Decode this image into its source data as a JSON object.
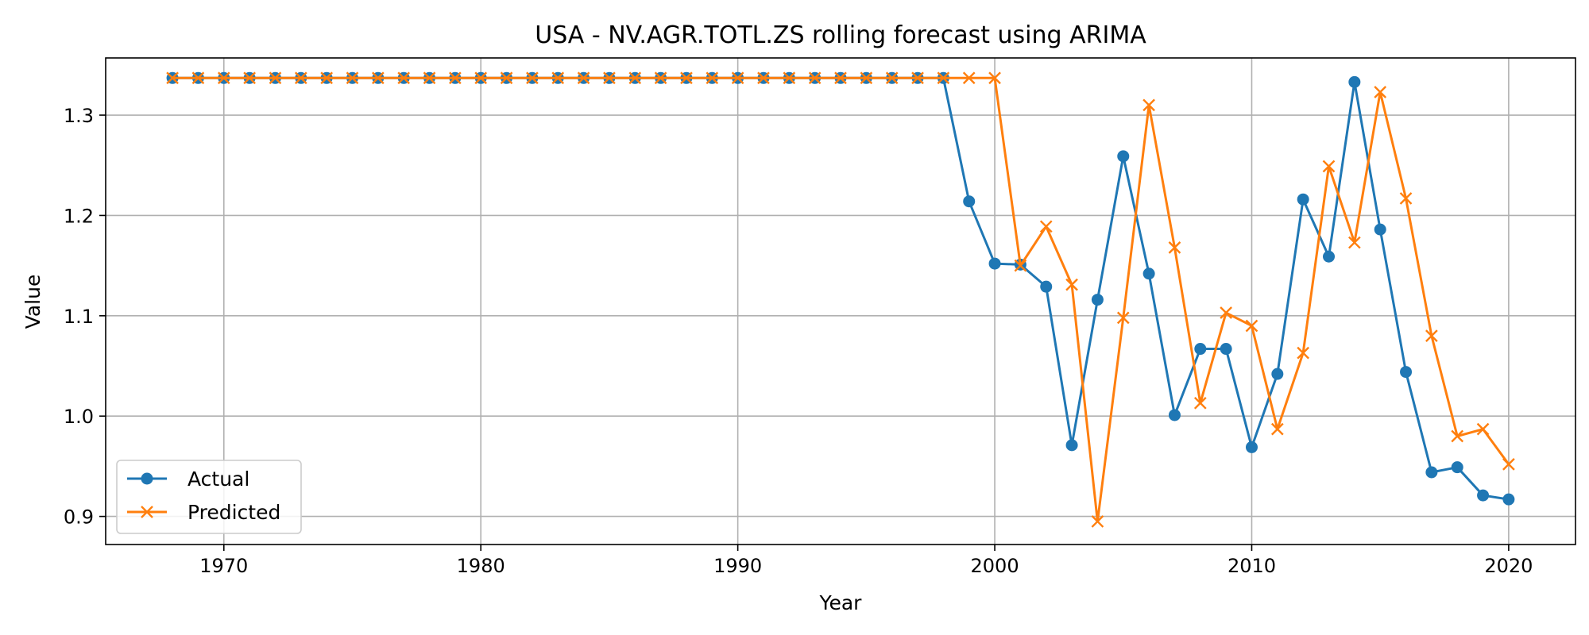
{
  "chart_data": {
    "type": "line",
    "title": "USA - NV.AGR.TOTL.ZS rolling forecast using ARIMA",
    "xlabel": "Year",
    "ylabel": "Value",
    "xlim": [
      1965.4,
      2022.6
    ],
    "ylim": [
      0.872,
      1.357
    ],
    "xticks": [
      1970,
      1980,
      1990,
      2000,
      2010,
      2020
    ],
    "yticks": [
      0.9,
      1.0,
      1.1,
      1.2,
      1.3
    ],
    "grid": true,
    "legend_position": "lower-left",
    "x": [
      1968,
      1969,
      1970,
      1971,
      1972,
      1973,
      1974,
      1975,
      1976,
      1977,
      1978,
      1979,
      1980,
      1981,
      1982,
      1983,
      1984,
      1985,
      1986,
      1987,
      1988,
      1989,
      1990,
      1991,
      1992,
      1993,
      1994,
      1995,
      1996,
      1997,
      1998,
      1999,
      2000,
      2001,
      2002,
      2003,
      2004,
      2005,
      2006,
      2007,
      2008,
      2009,
      2010,
      2011,
      2012,
      2013,
      2014,
      2015,
      2016,
      2017,
      2018,
      2019,
      2020
    ],
    "series": [
      {
        "name": "Actual",
        "color": "#1f77b4",
        "marker": "circle",
        "values": [
          1.337,
          1.337,
          1.337,
          1.337,
          1.337,
          1.337,
          1.337,
          1.337,
          1.337,
          1.337,
          1.337,
          1.337,
          1.337,
          1.337,
          1.337,
          1.337,
          1.337,
          1.337,
          1.337,
          1.337,
          1.337,
          1.337,
          1.337,
          1.337,
          1.337,
          1.337,
          1.337,
          1.337,
          1.337,
          1.337,
          1.337,
          1.214,
          1.152,
          1.151,
          1.129,
          0.971,
          1.116,
          1.259,
          1.142,
          1.001,
          1.067,
          1.067,
          0.969,
          1.042,
          1.216,
          1.159,
          1.333,
          1.186,
          1.044,
          0.944,
          0.949,
          0.921,
          0.917
        ]
      },
      {
        "name": "Predicted",
        "color": "#ff7f0e",
        "marker": "x",
        "values": [
          1.337,
          1.337,
          1.337,
          1.337,
          1.337,
          1.337,
          1.337,
          1.337,
          1.337,
          1.337,
          1.337,
          1.337,
          1.337,
          1.337,
          1.337,
          1.337,
          1.337,
          1.337,
          1.337,
          1.337,
          1.337,
          1.337,
          1.337,
          1.337,
          1.337,
          1.337,
          1.337,
          1.337,
          1.337,
          1.337,
          1.337,
          1.337,
          1.337,
          1.15,
          1.189,
          1.131,
          0.895,
          1.098,
          1.31,
          1.168,
          1.013,
          1.103,
          1.09,
          0.987,
          1.063,
          1.249,
          1.173,
          1.323,
          1.217,
          1.08,
          0.98,
          0.987,
          0.952
        ]
      }
    ]
  }
}
